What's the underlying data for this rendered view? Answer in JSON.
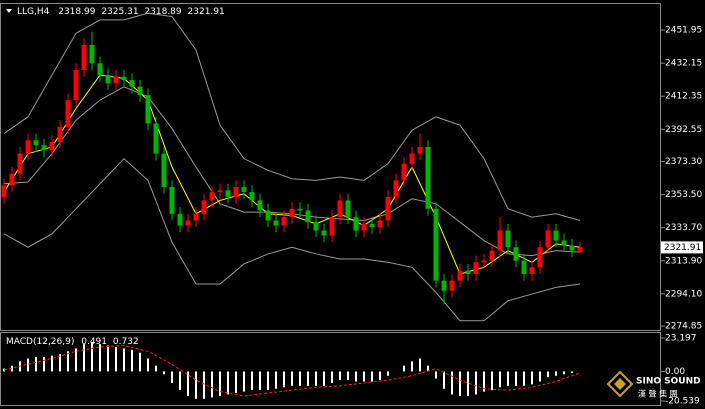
{
  "chart_data": {
    "type": "candlestick",
    "title": "LLG,H4",
    "header_values": [
      2318.99,
      2325.31,
      2318.89,
      2321.91
    ],
    "open": [
      2352,
      2359,
      2366,
      2378,
      2386,
      2383,
      2380,
      2385,
      2394,
      2410,
      2428,
      2443,
      2432,
      2425,
      2420,
      2424,
      2422,
      2418,
      2413,
      2396,
      2378,
      2358,
      2342,
      2335,
      2338,
      2342,
      2350,
      2355,
      2356,
      2352,
      2358,
      2355,
      2350,
      2344,
      2338,
      2335,
      2340,
      2345,
      2344,
      2337,
      2332,
      2329,
      2340,
      2350,
      2340,
      2332,
      2336,
      2334,
      2338,
      2352,
      2362,
      2372,
      2378,
      2382,
      2345,
      2302,
      2296,
      2302,
      2308,
      2306,
      2313,
      2314,
      2320,
      2332,
      2322,
      2314,
      2306,
      2310,
      2322,
      2332,
      2326,
      2323,
      2318.99
    ],
    "high": [
      2363,
      2370,
      2382,
      2390,
      2390,
      2387,
      2389,
      2398,
      2414,
      2432,
      2447,
      2451,
      2436,
      2429,
      2428,
      2428,
      2426,
      2422,
      2417,
      2400,
      2382,
      2362,
      2346,
      2342,
      2346,
      2354,
      2359,
      2360,
      2360,
      2362,
      2362,
      2359,
      2354,
      2348,
      2342,
      2344,
      2349,
      2349,
      2348,
      2341,
      2336,
      2344,
      2354,
      2354,
      2344,
      2340,
      2340,
      2342,
      2356,
      2366,
      2376,
      2382,
      2390,
      2386,
      2349,
      2306,
      2306,
      2312,
      2312,
      2317,
      2318,
      2324,
      2340,
      2336,
      2326,
      2318,
      2314,
      2326,
      2336,
      2336,
      2330,
      2327,
      2325.31
    ],
    "low": [
      2348,
      2355,
      2362,
      2374,
      2379,
      2376,
      2376,
      2381,
      2390,
      2406,
      2424,
      2428,
      2421,
      2416,
      2416,
      2418,
      2414,
      2409,
      2392,
      2374,
      2354,
      2338,
      2331,
      2331,
      2334,
      2338,
      2346,
      2351,
      2348,
      2348,
      2351,
      2346,
      2340,
      2334,
      2331,
      2331,
      2336,
      2340,
      2333,
      2328,
      2325,
      2325,
      2336,
      2336,
      2328,
      2328,
      2330,
      2330,
      2334,
      2348,
      2358,
      2368,
      2374,
      2341,
      2298,
      2288,
      2292,
      2298,
      2302,
      2302,
      2309,
      2310,
      2316,
      2318,
      2310,
      2302,
      2302,
      2306,
      2318,
      2322,
      2319,
      2316,
      2318.89
    ],
    "close": [
      2359,
      2366,
      2378,
      2386,
      2383,
      2380,
      2385,
      2394,
      2410,
      2428,
      2443,
      2432,
      2425,
      2420,
      2424,
      2422,
      2418,
      2413,
      2396,
      2378,
      2358,
      2342,
      2335,
      2338,
      2342,
      2350,
      2355,
      2356,
      2352,
      2358,
      2355,
      2350,
      2344,
      2338,
      2335,
      2340,
      2345,
      2344,
      2337,
      2332,
      2329,
      2340,
      2350,
      2340,
      2332,
      2336,
      2334,
      2338,
      2352,
      2362,
      2372,
      2378,
      2382,
      2345,
      2302,
      2296,
      2302,
      2308,
      2306,
      2313,
      2314,
      2320,
      2332,
      2322,
      2314,
      2306,
      2310,
      2322,
      2332,
      2326,
      2323,
      2320,
      2321.91
    ],
    "up_color": "#ff0000",
    "down_color": "#00b400",
    "ylim": [
      2272.5,
      2467.5
    ],
    "yticks": [
      2451.95,
      2432.15,
      2412.35,
      2392.55,
      {
        "value": 2373.3,
        "label": "2373.30"
      },
      {
        "value": 2353.5,
        "label": "2353.50"
      },
      {
        "value": 2333.7,
        "label": "2333.70"
      },
      {
        "value": 2313.9,
        "label": "2313.90"
      },
      {
        "value": 2294.1,
        "label": "2294.10"
      },
      2274.85
    ],
    "line_x": [
      0,
      3,
      6,
      9,
      12,
      15,
      18,
      21,
      24,
      27,
      30,
      33,
      36,
      39,
      42,
      45,
      48,
      51,
      54,
      57,
      60,
      63,
      66,
      69,
      72
    ],
    "lines": [
      {
        "color": "#9a9a9a",
        "values": [
          2390,
          2400,
          2425,
          2450,
          2458,
          2458,
          2462,
          2460,
          2440,
          2395,
          2375,
          2368,
          2363,
          2362,
          2364,
          2362,
          2372,
          2392,
          2400,
          2395,
          2375,
          2345,
          2340,
          2342,
          2338
        ]
      },
      {
        "color": "#9a9a9a",
        "values": [
          2360,
          2361,
          2378,
          2398,
          2410,
          2418,
          2412,
          2393,
          2370,
          2348,
          2343,
          2343,
          2342,
          2340,
          2339,
          2338,
          2342,
          2351,
          2348,
          2337,
          2326,
          2318,
          2317,
          2320,
          2319
        ]
      },
      {
        "color": "#9a9a9a",
        "values": [
          2330,
          2322,
          2330,
          2345,
          2360,
          2375,
          2362,
          2325,
          2300,
          2300,
          2312,
          2318,
          2322,
          2318,
          2315,
          2315,
          2313,
          2310,
          2295,
          2278,
          2278,
          2290,
          2294,
          2298,
          2300
        ]
      },
      {
        "color": "#ffff00",
        "values": [
          2355,
          2378,
          2382,
          2405,
          2425,
          2423,
          2410,
          2370,
          2342,
          2350,
          2354,
          2342,
          2341,
          2336,
          2342,
          2335,
          2345,
          2370,
          2340,
          2306,
          2310,
          2320,
          2313,
          2324,
          2322
        ]
      }
    ],
    "macd": {
      "title": "MACD(12,26,9)",
      "header_values": [
        0.491,
        0.732
      ],
      "histogram": [
        2,
        4,
        7,
        9,
        10,
        10,
        11,
        12,
        14,
        16,
        19,
        20,
        19,
        18,
        17,
        16,
        15,
        13,
        9,
        4,
        -2,
        -8,
        -13,
        -17,
        -19,
        -19,
        -18,
        -17,
        -16,
        -15,
        -14,
        -13,
        -13,
        -13,
        -12,
        -11,
        -10,
        -10,
        -10,
        -10,
        -10,
        -8,
        -6,
        -6,
        -7,
        -7,
        -7,
        -6,
        -3,
        0,
        4,
        7,
        9,
        4,
        -5,
        -12,
        -16,
        -17,
        -17,
        -16,
        -14,
        -13,
        -11,
        -10,
        -10,
        -10,
        -9,
        -7,
        -4,
        -3,
        -2,
        -1,
        0
      ],
      "signal": [
        1,
        5,
        9,
        14,
        17,
        18,
        14,
        5,
        -6,
        -14,
        -17,
        -15,
        -13,
        -11,
        -10,
        -8,
        -6,
        -3,
        2,
        -6,
        -12,
        -13,
        -11,
        -7,
        -1
      ],
      "signal_color": "#ff2020",
      "hist_color": "#ffffff",
      "ylim": [
        -23.3,
        26.7
      ],
      "yticks": [
        23.197,
        {
          "value": 0,
          "label": "0.00"
        },
        -20.539
      ]
    },
    "logo": {
      "name": "SINO SOUND",
      "subtitle": "漢 聲 集 團"
    }
  }
}
